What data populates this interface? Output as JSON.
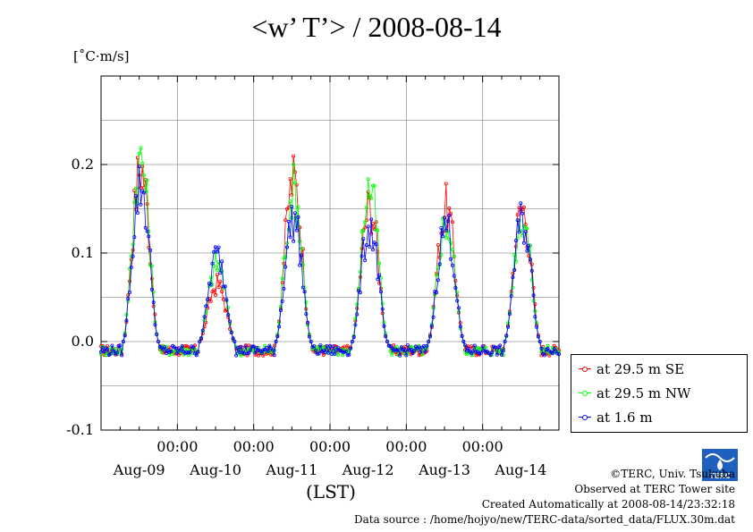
{
  "title": "<w’ T’> / 2008-08-14",
  "unit_label": "[˚C·m/s]",
  "x_unit_label": "(LST)",
  "legend": [
    {
      "label": "at 29.5 m SE",
      "color": "#ff0000"
    },
    {
      "label": "at 29.5 m NW",
      "color": "#00ff00"
    },
    {
      "label": "at 1.6 m",
      "color": "#0000ff"
    }
  ],
  "credits": {
    "copyright": "©TERC, Univ. Tsukuba",
    "observed": "Observed at TERC Tower site",
    "created": "Created Automatically at 2008-08-14/23:32:18",
    "source": "Data source : /home/hojyo/new/TERC-data/sorted_data/FLUX.30m.dat"
  },
  "logo_text": "TERC",
  "chart_data": {
    "type": "line",
    "title": "<w’ T’> / 2008-08-14",
    "ylabel": "[˚C·m/s]",
    "xlabel": "(LST)",
    "ylim": [
      -0.1,
      0.3
    ],
    "yticks": [
      -0.1,
      0.0,
      0.1,
      0.2
    ],
    "y_tick_labels": [
      "-0.1",
      "0.0",
      "0.1",
      "0.2"
    ],
    "x_unit": "hours since 2008-08-08 00:00 LST",
    "xlim": [
      24,
      168
    ],
    "time_ticks": [
      48,
      72,
      96,
      120,
      144
    ],
    "time_tick_labels": [
      "00:00",
      "00:00",
      "00:00",
      "00:00",
      "00:00"
    ],
    "day_labels": [
      "Aug-09",
      "Aug-10",
      "Aug-11",
      "Aug-12",
      "Aug-13",
      "Aug-14"
    ],
    "day_label_positions": [
      36,
      60,
      84,
      108,
      132,
      156
    ],
    "grid": true,
    "legend_position": "right-outside",
    "series": [
      {
        "name": "at 29.5 m SE",
        "color": "#ff0000"
      },
      {
        "name": "at 29.5 m NW",
        "color": "#00ff00"
      },
      {
        "name": "at 1.6 m",
        "color": "#0000ff"
      }
    ],
    "daily_peaks": [
      {
        "day": "Aug-09",
        "at_29_5m_se": 0.213,
        "at_29_5m_nw": 0.221,
        "at_1_6m": 0.19
      },
      {
        "day": "Aug-10",
        "at_29_5m_se": 0.07,
        "at_29_5m_nw": 0.095,
        "at_1_6m": 0.105
      },
      {
        "day": "Aug-11",
        "at_29_5m_se": 0.198,
        "at_29_5m_nw": 0.185,
        "at_1_6m": 0.15
      },
      {
        "day": "Aug-12",
        "at_29_5m_se": 0.165,
        "at_29_5m_nw": 0.188,
        "at_1_6m": 0.14
      },
      {
        "day": "Aug-13",
        "at_29_5m_se": 0.163,
        "at_29_5m_nw": 0.145,
        "at_1_6m": 0.143
      },
      {
        "day": "Aug-14",
        "at_29_5m_se": 0.163,
        "at_29_5m_nw": 0.155,
        "at_1_6m": 0.148
      }
    ]
  }
}
